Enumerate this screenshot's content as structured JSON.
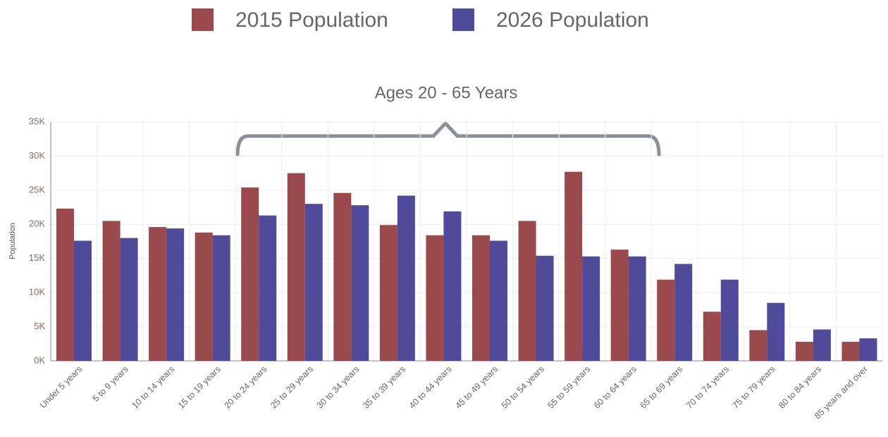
{
  "chart_data": {
    "type": "bar",
    "annotation": "Ages 20 - 65 Years",
    "y_label": "Population",
    "categories": [
      "Under 5 years",
      "5 to 9 years",
      "10 to 14 years",
      "15 to 19 years",
      "20 to 24 years",
      "25 to 29 years",
      "30 to 34 years",
      "35 to 39 years",
      "40 to 44 years",
      "45 to 49 years",
      "50 to 54 years",
      "55 to 59 years",
      "60 to 64 years",
      "65 to 69 years",
      "70 to 74 years",
      "75 to 79 years",
      "80 to 84 years",
      "85 years and over"
    ],
    "series": [
      {
        "name": "2015 Population",
        "color": "#9a4a4d",
        "values": [
          22300,
          20500,
          19600,
          18800,
          25400,
          27500,
          24600,
          19900,
          18400,
          18400,
          20500,
          27700,
          16300,
          11900,
          7200,
          4500,
          2800,
          2800
        ]
      },
      {
        "name": "2026 Population",
        "color": "#4f4a99",
        "values": [
          17600,
          18000,
          19400,
          18400,
          21300,
          23000,
          22800,
          24200,
          21900,
          17600,
          15400,
          15300,
          15300,
          14200,
          11900,
          8500,
          4600,
          3300
        ]
      }
    ],
    "ylim": [
      0,
      35000
    ],
    "yticks": [
      {
        "value": 0,
        "label": "0K"
      },
      {
        "value": 5000,
        "label": "5K"
      },
      {
        "value": 10000,
        "label": "10K"
      },
      {
        "value": 15000,
        "label": "15K"
      },
      {
        "value": 20000,
        "label": "20K"
      },
      {
        "value": 25000,
        "label": "25K"
      },
      {
        "value": 30000,
        "label": "30K"
      },
      {
        "value": 35000,
        "label": "35K"
      }
    ],
    "grid": true
  }
}
